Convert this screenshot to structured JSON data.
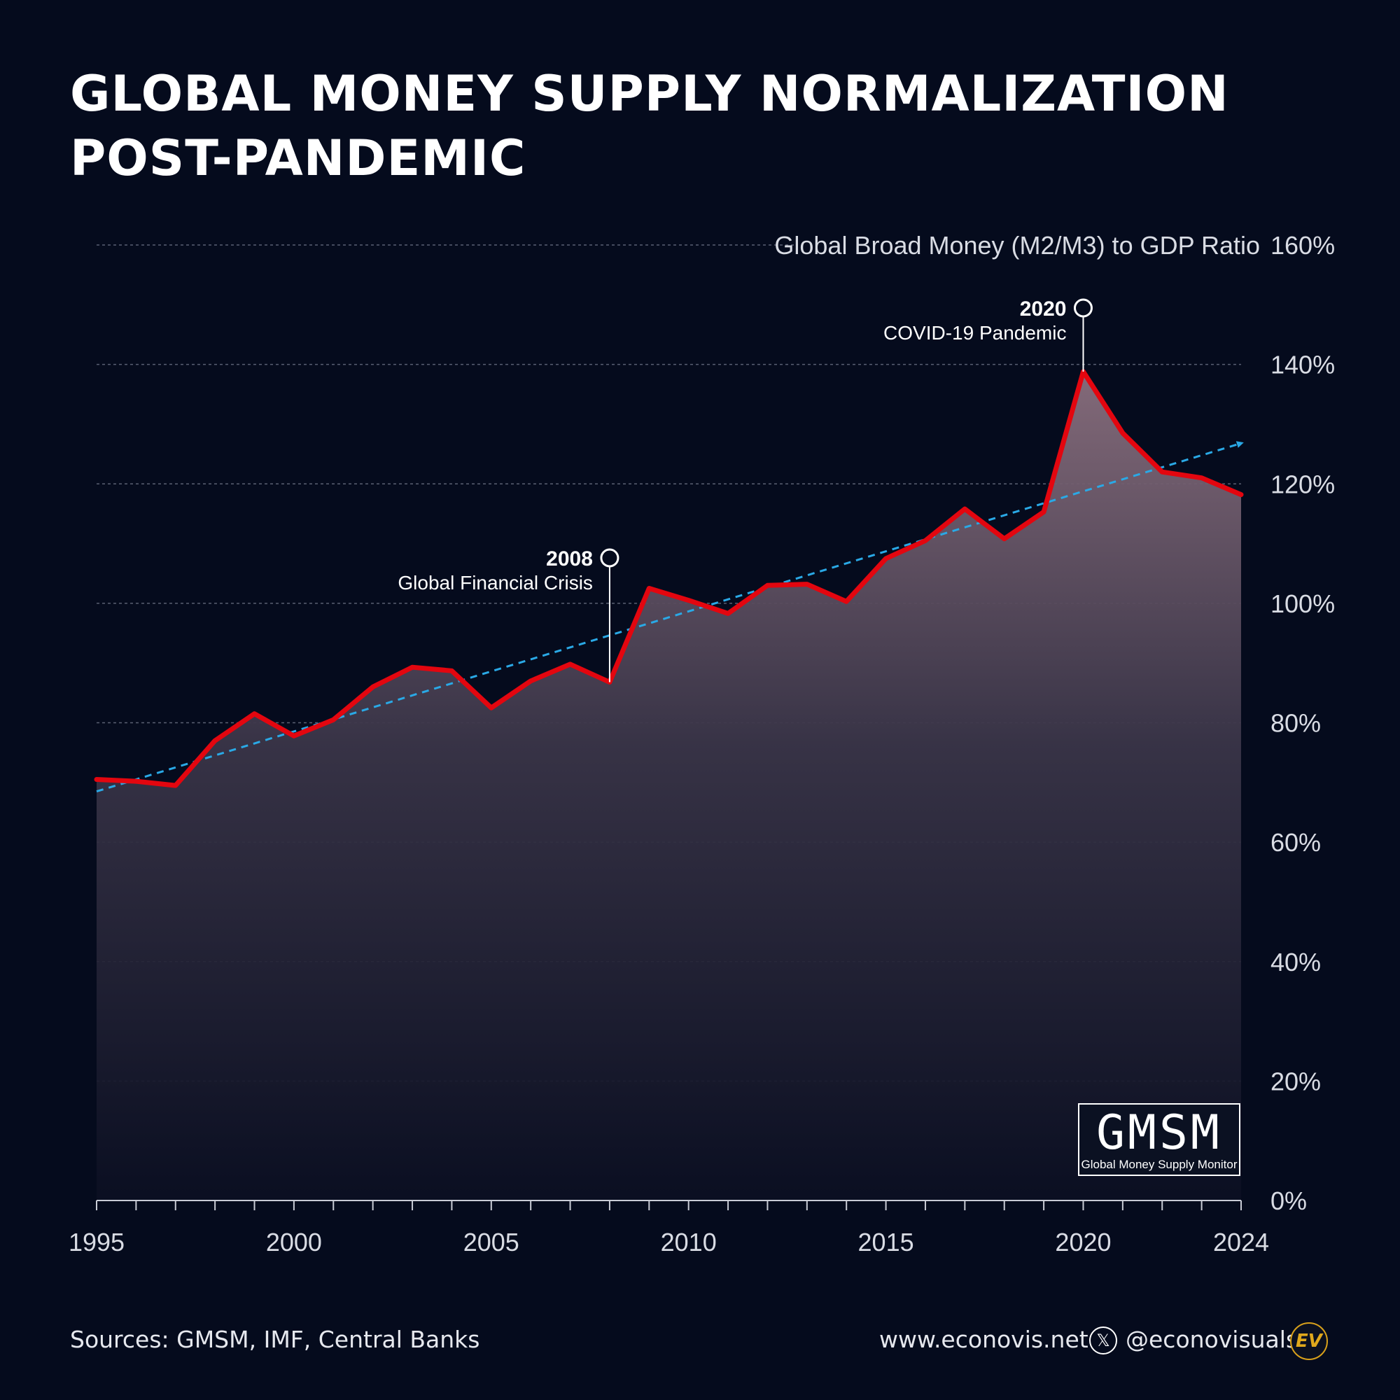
{
  "title_line1": "GLOBAL MONEY SUPPLY NORMALIZATION",
  "title_line2": "POST-PANDEMIC",
  "footer": {
    "source": "Sources: GMSM, IMF, Central Banks",
    "website": "www.econovis.net",
    "handle": "@econovisuals",
    "x_icon": "x-logo-icon",
    "ev_logo": "EV"
  },
  "brand": {
    "name": "GMSM",
    "subtitle": "Global Money Supply Monitor"
  },
  "colors": {
    "background": "#050b1d",
    "line": "#e3060f",
    "trend": "#2aa9e6",
    "grid": "#5a6073",
    "area_top": "#8a6f7e"
  },
  "chart_data": {
    "type": "line",
    "ylabel": "Global Broad Money (M2/M3) to GDP Ratio",
    "ylim": [
      0,
      160
    ],
    "xlim": [
      1995,
      2024
    ],
    "y_ticks": [
      0,
      20,
      40,
      60,
      80,
      100,
      120,
      140,
      160
    ],
    "y_tick_labels": [
      "0%",
      "20%",
      "40%",
      "60%",
      "80%",
      "100%",
      "120%",
      "140%",
      "160%"
    ],
    "x_ticks": [
      1995,
      2000,
      2005,
      2010,
      2015,
      2020,
      2024
    ],
    "x_tick_labels": [
      "1995",
      "2000",
      "2005",
      "2010",
      "2015",
      "2020",
      "2024"
    ],
    "grid": true,
    "area_fill": true,
    "series": [
      {
        "x": [
          1995,
          1996,
          1997,
          1998,
          1999,
          2000,
          2001,
          2002,
          2003,
          2004,
          2005,
          2006,
          2007,
          2008,
          2009,
          2010,
          2011,
          2012,
          2013,
          2014,
          2015,
          2016,
          2017,
          2018,
          2019,
          2020,
          2021,
          2022,
          2023,
          2024
        ],
        "values": [
          70.5,
          70.2,
          69.5,
          77.0,
          81.5,
          77.8,
          80.5,
          86.0,
          89.3,
          88.7,
          82.5,
          87.0,
          89.8,
          86.8,
          102.5,
          100.5,
          98.3,
          103.0,
          103.2,
          100.3,
          107.5,
          110.5,
          115.8,
          110.8,
          115.3,
          138.8,
          128.5,
          122.0,
          121.0,
          118.2
        ]
      }
    ],
    "trend_line": {
      "x": [
        1995,
        2024
      ],
      "values": [
        68.5,
        126.8
      ],
      "style": "dashed"
    },
    "annotations": [
      {
        "x": 2008,
        "year_label": "2008",
        "text": "Global Financial Crisis"
      },
      {
        "x": 2020,
        "year_label": "2020",
        "text": "COVID-19 Pandemic"
      }
    ]
  }
}
